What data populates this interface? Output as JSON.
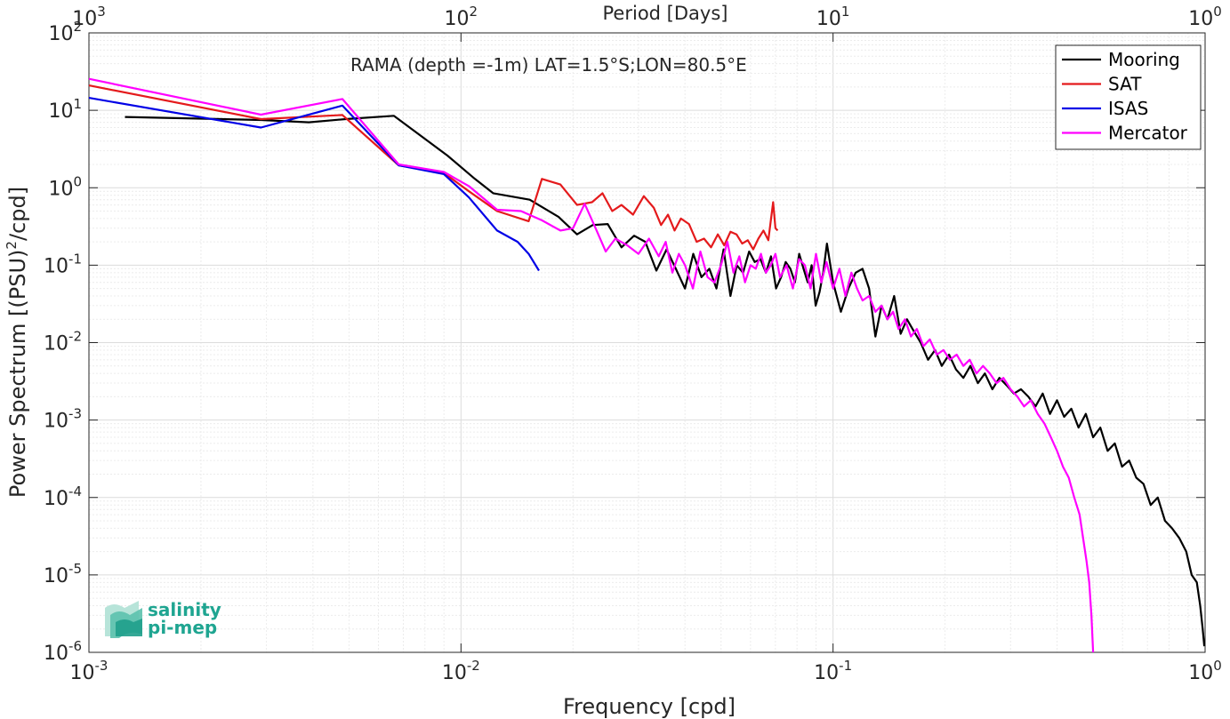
{
  "chart_data": {
    "type": "line",
    "annotation": "RAMA (depth =-1m) LAT=1.5°S;LON=80.5°E",
    "xlabel": "Frequency [cpd]",
    "ylabel_main": "Power Spectrum [(PSU)",
    "ylabel_sup": "2",
    "ylabel_tail": "/cpd]",
    "x2label": "Period [Days]",
    "x_scale": "log",
    "y_scale": "log",
    "xlim": [
      0.001,
      1
    ],
    "ylim": [
      1e-06,
      100
    ],
    "grid": true,
    "legend_position": "top-right",
    "x_ticks": [
      {
        "value": 0.001,
        "base": "10",
        "exp": "-3"
      },
      {
        "value": 0.01,
        "base": "10",
        "exp": "-2"
      },
      {
        "value": 0.1,
        "base": "10",
        "exp": "-1"
      },
      {
        "value": 1,
        "base": "10",
        "exp": "0"
      }
    ],
    "x2_ticks": [
      {
        "value": 0.001,
        "base": "10",
        "exp": "3"
      },
      {
        "value": 0.01,
        "base": "10",
        "exp": "2"
      },
      {
        "value": 0.1,
        "base": "10",
        "exp": "1"
      },
      {
        "value": 1,
        "base": "10",
        "exp": "0"
      }
    ],
    "y_ticks": [
      {
        "value": 100,
        "base": "10",
        "exp": "2"
      },
      {
        "value": 10,
        "base": "10",
        "exp": "1"
      },
      {
        "value": 1,
        "base": "10",
        "exp": "0"
      },
      {
        "value": 0.1,
        "base": "10",
        "exp": "-1"
      },
      {
        "value": 0.01,
        "base": "10",
        "exp": "-2"
      },
      {
        "value": 0.001,
        "base": "10",
        "exp": "-3"
      },
      {
        "value": 0.0001,
        "base": "10",
        "exp": "-4"
      },
      {
        "value": 1e-05,
        "base": "10",
        "exp": "-5"
      },
      {
        "value": 1e-06,
        "base": "10",
        "exp": "-6"
      }
    ],
    "series": [
      {
        "name": "Mooring",
        "color": "#000000",
        "x": [
          0.00125,
          0.0029,
          0.0039,
          0.0049,
          0.0066,
          0.0092,
          0.0109,
          0.0122,
          0.0153,
          0.0183,
          0.0205,
          0.0226,
          0.0248,
          0.027,
          0.0292,
          0.0313,
          0.0335,
          0.0357,
          0.0378,
          0.04,
          0.0421,
          0.0443,
          0.0465,
          0.0486,
          0.0508,
          0.053,
          0.0551,
          0.0573,
          0.0595,
          0.0616,
          0.0638,
          0.066,
          0.0681,
          0.0703,
          0.0725,
          0.0746,
          0.0768,
          0.079,
          0.0811,
          0.0833,
          0.0855,
          0.0876,
          0.0898,
          0.092,
          0.0941,
          0.0963,
          0.1,
          0.105,
          0.11,
          0.115,
          0.12,
          0.125,
          0.13,
          0.135,
          0.14,
          0.146,
          0.152,
          0.158,
          0.165,
          0.172,
          0.18,
          0.188,
          0.196,
          0.205,
          0.214,
          0.224,
          0.234,
          0.245,
          0.256,
          0.268,
          0.28,
          0.293,
          0.306,
          0.32,
          0.335,
          0.35,
          0.366,
          0.383,
          0.4,
          0.418,
          0.437,
          0.457,
          0.478,
          0.5,
          0.523,
          0.547,
          0.572,
          0.598,
          0.625,
          0.653,
          0.683,
          0.714,
          0.746,
          0.78,
          0.815,
          0.852,
          0.89,
          0.92,
          0.95,
          0.97,
          0.985,
          0.995
        ],
        "values": [
          8.2,
          7.5,
          7.0,
          7.7,
          8.5,
          2.6,
          1.3,
          0.85,
          0.7,
          0.42,
          0.25,
          0.33,
          0.34,
          0.17,
          0.24,
          0.2,
          0.085,
          0.16,
          0.09,
          0.05,
          0.14,
          0.07,
          0.09,
          0.05,
          0.16,
          0.04,
          0.1,
          0.08,
          0.15,
          0.11,
          0.12,
          0.08,
          0.13,
          0.05,
          0.07,
          0.11,
          0.09,
          0.06,
          0.14,
          0.09,
          0.06,
          0.1,
          0.03,
          0.045,
          0.08,
          0.19,
          0.06,
          0.025,
          0.05,
          0.08,
          0.09,
          0.05,
          0.012,
          0.03,
          0.02,
          0.04,
          0.013,
          0.02,
          0.014,
          0.01,
          0.006,
          0.008,
          0.005,
          0.007,
          0.0045,
          0.0035,
          0.005,
          0.003,
          0.004,
          0.0025,
          0.0035,
          0.0028,
          0.0022,
          0.0025,
          0.002,
          0.0015,
          0.0022,
          0.0012,
          0.0018,
          0.0011,
          0.0014,
          0.0008,
          0.0012,
          0.0006,
          0.0008,
          0.0004,
          0.0005,
          0.00025,
          0.0003,
          0.00018,
          0.00015,
          8e-05,
          0.0001,
          5e-05,
          4e-05,
          3e-05,
          2e-05,
          1e-05,
          8e-06,
          4e-06,
          2e-06,
          1.2e-06
        ]
      },
      {
        "name": "SAT",
        "color": "#e41a1c",
        "x": [
          0.001,
          0.0029,
          0.0048,
          0.0068,
          0.009,
          0.0105,
          0.0125,
          0.0152,
          0.0165,
          0.0185,
          0.0205,
          0.0225,
          0.024,
          0.0255,
          0.027,
          0.029,
          0.031,
          0.033,
          0.0345,
          0.036,
          0.0375,
          0.039,
          0.041,
          0.043,
          0.045,
          0.047,
          0.049,
          0.051,
          0.053,
          0.055,
          0.057,
          0.059,
          0.061,
          0.063,
          0.065,
          0.067,
          0.069,
          0.07,
          0.071
        ],
        "values": [
          21,
          7.7,
          8.7,
          1.95,
          1.55,
          0.9,
          0.5,
          0.37,
          1.3,
          1.1,
          0.6,
          0.65,
          0.85,
          0.5,
          0.6,
          0.45,
          0.78,
          0.55,
          0.33,
          0.45,
          0.28,
          0.4,
          0.34,
          0.2,
          0.22,
          0.17,
          0.25,
          0.18,
          0.27,
          0.25,
          0.19,
          0.21,
          0.16,
          0.22,
          0.28,
          0.21,
          0.65,
          0.3,
          0.28
        ]
      },
      {
        "name": "ISAS",
        "color": "#0000e6",
        "x": [
          0.001,
          0.0029,
          0.0048,
          0.0068,
          0.009,
          0.0105,
          0.0125,
          0.0142,
          0.0152,
          0.0162
        ],
        "values": [
          14.5,
          6.0,
          11.5,
          1.95,
          1.5,
          0.75,
          0.28,
          0.2,
          0.14,
          0.085
        ]
      },
      {
        "name": "Mercator",
        "color": "#ff00ff",
        "x": [
          0.001,
          0.0029,
          0.0048,
          0.0068,
          0.009,
          0.0105,
          0.0125,
          0.0145,
          0.0165,
          0.0185,
          0.02,
          0.0215,
          0.023,
          0.0245,
          0.026,
          0.028,
          0.03,
          0.032,
          0.034,
          0.0355,
          0.037,
          0.0385,
          0.04,
          0.042,
          0.044,
          0.046,
          0.048,
          0.05,
          0.052,
          0.054,
          0.056,
          0.058,
          0.06,
          0.062,
          0.064,
          0.066,
          0.068,
          0.07,
          0.072,
          0.075,
          0.078,
          0.081,
          0.084,
          0.087,
          0.09,
          0.093,
          0.096,
          0.1,
          0.104,
          0.108,
          0.112,
          0.116,
          0.12,
          0.125,
          0.13,
          0.135,
          0.14,
          0.145,
          0.15,
          0.156,
          0.162,
          0.168,
          0.175,
          0.182,
          0.19,
          0.198,
          0.206,
          0.215,
          0.224,
          0.233,
          0.243,
          0.253,
          0.264,
          0.275,
          0.287,
          0.3,
          0.313,
          0.326,
          0.34,
          0.355,
          0.37,
          0.385,
          0.4,
          0.415,
          0.43,
          0.445,
          0.46,
          0.47,
          0.48,
          0.488,
          0.495,
          0.5
        ],
        "values": [
          25.5,
          8.8,
          14.0,
          2.0,
          1.6,
          1.05,
          0.52,
          0.5,
          0.38,
          0.28,
          0.3,
          0.62,
          0.3,
          0.15,
          0.22,
          0.18,
          0.14,
          0.22,
          0.13,
          0.2,
          0.08,
          0.14,
          0.1,
          0.05,
          0.15,
          0.07,
          0.06,
          0.1,
          0.2,
          0.08,
          0.13,
          0.06,
          0.1,
          0.09,
          0.14,
          0.08,
          0.1,
          0.14,
          0.07,
          0.1,
          0.05,
          0.12,
          0.1,
          0.05,
          0.14,
          0.06,
          0.11,
          0.05,
          0.09,
          0.04,
          0.08,
          0.05,
          0.035,
          0.04,
          0.025,
          0.03,
          0.02,
          0.025,
          0.015,
          0.02,
          0.012,
          0.015,
          0.009,
          0.011,
          0.007,
          0.008,
          0.006,
          0.007,
          0.005,
          0.006,
          0.004,
          0.005,
          0.004,
          0.003,
          0.0035,
          0.0025,
          0.002,
          0.0015,
          0.0018,
          0.0012,
          0.0009,
          0.0006,
          0.0004,
          0.00025,
          0.00018,
          0.0001,
          6e-05,
          3e-05,
          1.5e-05,
          8e-06,
          3e-06,
          1e-06
        ]
      }
    ]
  },
  "logo": {
    "line1": "salinity",
    "line2": "pi-mep"
  }
}
